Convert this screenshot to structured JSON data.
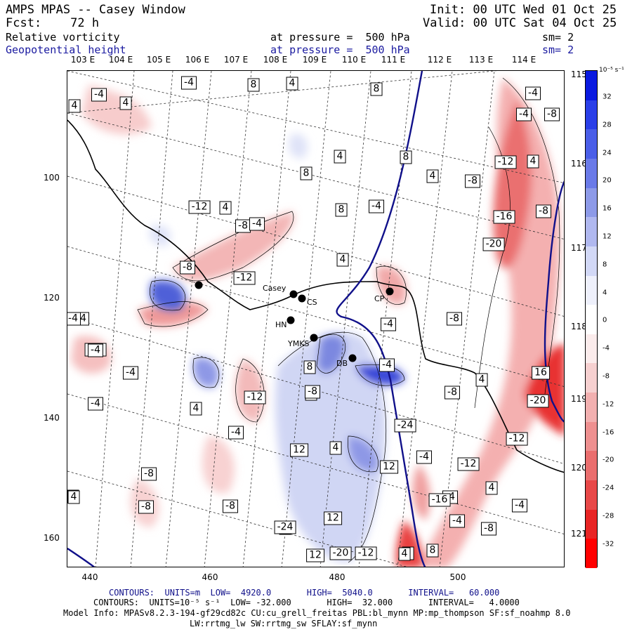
{
  "header": {
    "title": "AMPS MPAS -- Casey Window",
    "forecast": "Fcst:    72 h",
    "init": "Init: 00 UTC Wed 01 Oct 25",
    "valid": "Valid: 00 UTC Sat 04 Oct 25",
    "field1_name": "Relative vorticity",
    "field1_level": "at pressure =  500 hPa",
    "field1_sm": "sm= 2",
    "field2_name": "Geopotential height",
    "field2_level": "at pressure =  500 hPa",
    "field2_sm": "sm= 2"
  },
  "top_lon_labels": [
    "103 E",
    "104 E",
    "105 E",
    "106 E",
    "107 E",
    "108 E",
    "109 E",
    "110 E",
    "111 E",
    "112 E",
    "113 E",
    "114 E"
  ],
  "right_lat_labels": [
    "115 E",
    "116 E",
    "117 E",
    "118 E",
    "119 E",
    "120 E",
    "121 E"
  ],
  "x_axis_ticks": [
    "440",
    "460",
    "480",
    "500"
  ],
  "y_axis_ticks": [
    "100",
    "120",
    "140",
    "160"
  ],
  "colorbar": {
    "units": "10⁻⁵ s⁻¹",
    "labels": [
      "32",
      "28",
      "24",
      "20",
      "16",
      "12",
      "8",
      "4",
      "0",
      "-4",
      "-8",
      "-12",
      "-16",
      "-20",
      "-24",
      "-28",
      "-32"
    ],
    "colors": [
      "#0a1ae0",
      "#2a3fe8",
      "#4a5ee8",
      "#6a7ae8",
      "#8d9ae8",
      "#b0b8ef",
      "#d2d8f6",
      "#eef0fb",
      "#ffffff",
      "#fbecec",
      "#f6d0d0",
      "#f2b0b0",
      "#ee9090",
      "#ea6e6e",
      "#e84848",
      "#e82424",
      "#ff0000"
    ]
  },
  "stations": [
    {
      "name": "Casey"
    },
    {
      "name": "CS"
    },
    {
      "name": "HN"
    },
    {
      "name": "YMKS"
    },
    {
      "name": "DB"
    },
    {
      "name": "CP"
    }
  ],
  "contour_labels": [
    "-4",
    "4",
    "4",
    "-4",
    "8",
    "4",
    "8",
    "-4",
    "-4",
    "-8",
    "4",
    "8",
    "4",
    "8",
    "4",
    "-12",
    "-8",
    "-16",
    "-8",
    "-20",
    "-8",
    "-12",
    "4",
    "-4",
    "8",
    "-4",
    "4",
    "-8",
    "-12",
    "-4",
    "-4",
    "-8",
    "-12",
    "8",
    "-4",
    "4",
    "8",
    "-4",
    "-12",
    "4",
    "-8",
    "-4",
    "-4",
    "-24",
    "-20",
    "16",
    "-8",
    "12",
    "4",
    "-4",
    "-12",
    "-12",
    "4",
    "4",
    "-8",
    "-4",
    "12",
    "12",
    "-8",
    "-4",
    "4",
    "-16",
    "-4",
    "-8",
    "-8",
    "12",
    "-20",
    "-12",
    "8",
    "8",
    "4",
    "-24",
    "4",
    "-4",
    "-4"
  ],
  "footer": {
    "line1": "CONTOURS:  UNITS=m  LOW=  4920.0       HIGH=  5040.0       INTERVAL=   60.000",
    "line2": "CONTOURS:  UNITS=10⁻⁵ s⁻¹  LOW= -32.000       HIGH=  32.000       INTERVAL=   4.0000",
    "line3": "Model Info: MPASv8.2.3-194-gf29cd82c CU:cu_grell_freitas PBL:bl_mynn MP:mp_thompson SF:sf_noahmp 8.0",
    "line4": "LW:rrtmg_lw SW:rrtmg_sw SFLAY:sf_mynn"
  }
}
